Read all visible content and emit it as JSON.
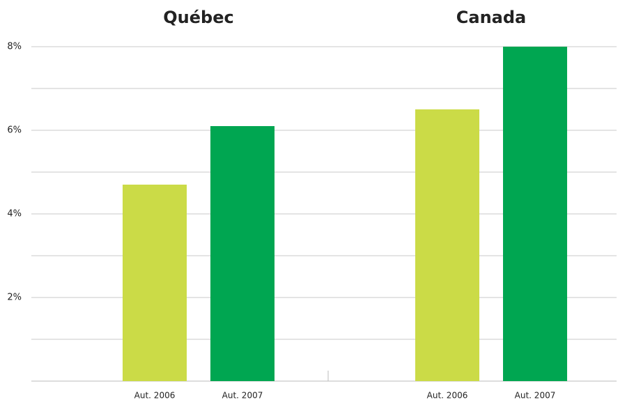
{
  "chart_data": {
    "type": "bar",
    "categories": [
      "Québec",
      "Canada"
    ],
    "series": [
      {
        "name": "Aut. 2006",
        "color": "#cbdb47",
        "values": [
          4.7,
          6.5
        ]
      },
      {
        "name": "Aut. 2007",
        "color": "#00a651",
        "values": [
          6.1,
          8.0
        ]
      }
    ],
    "ylim": [
      0,
      8
    ],
    "yticks": [
      {
        "value": 2,
        "label": "2%"
      },
      {
        "value": 4,
        "label": "4%"
      },
      {
        "value": 6,
        "label": "6%"
      },
      {
        "value": 8,
        "label": "8%"
      }
    ],
    "minor_yticks": [
      1,
      3,
      5,
      7
    ],
    "grid": true
  }
}
